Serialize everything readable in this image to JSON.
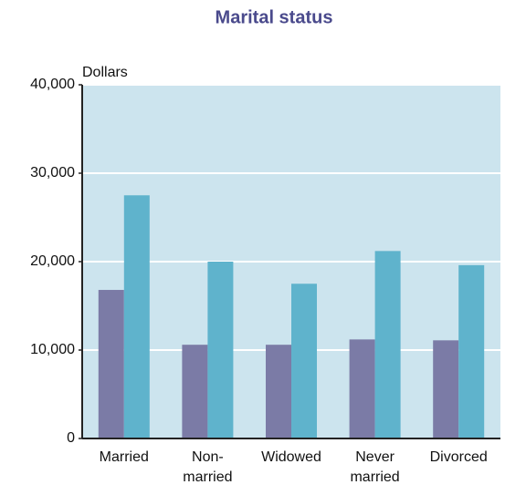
{
  "chart_data": {
    "type": "bar",
    "title": "Marital status",
    "ylabel": "Dollars",
    "categories": [
      "Married",
      "Non-\nmarried",
      "Widowed",
      "Never\nmarried",
      "Divorced"
    ],
    "series": [
      {
        "color": "#7b7ba6",
        "values": [
          16800,
          10600,
          10600,
          11200,
          11100
        ]
      },
      {
        "color": "#5fb3cc",
        "values": [
          27500,
          20000,
          17500,
          21200,
          19600
        ]
      }
    ],
    "ylim": [
      0,
      40000
    ],
    "yticks": [
      0,
      {
        "value": 10000,
        "label": "10,000"
      },
      {
        "value": 20000,
        "label": "20,000"
      },
      {
        "value": 30000,
        "label": "30,000"
      },
      {
        "value": 40000,
        "label": "40,000"
      }
    ],
    "grid": true
  }
}
